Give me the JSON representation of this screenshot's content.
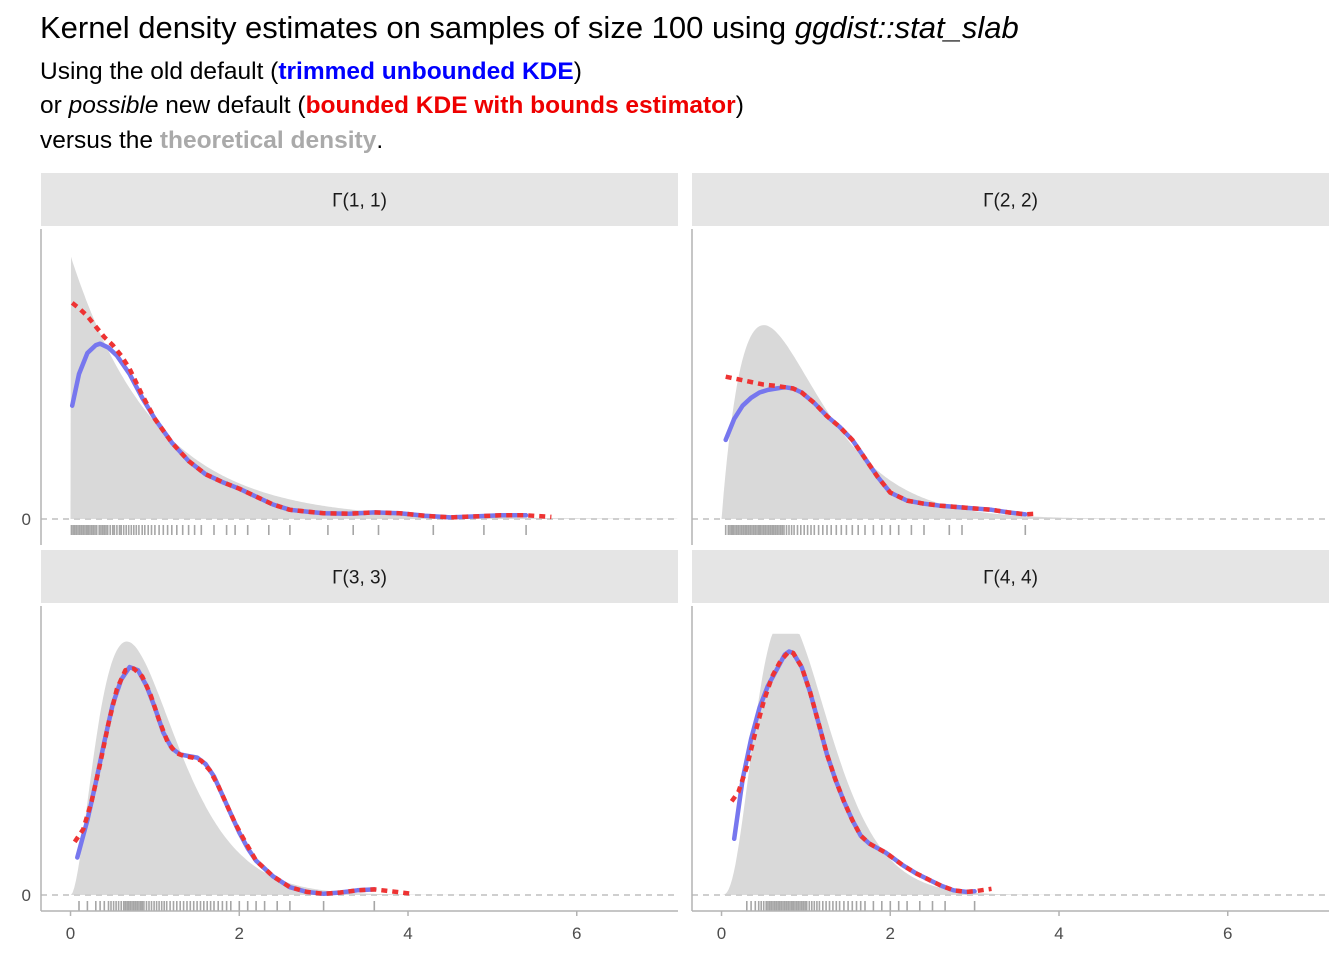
{
  "header": {
    "title_pre": "Kernel density estimates on samples of size 100 using ",
    "title_code": "ggdist::stat_slab",
    "sub1_pre": "Using the old default (",
    "sub1_blue": "trimmed unbounded KDE",
    "sub1_post": ")",
    "sub2_pre": "or ",
    "sub2_em": "possible",
    "sub2_mid": " new default (",
    "sub2_red": "bounded KDE with bounds estimator",
    "sub2_post": ")",
    "sub3_pre": "versus the ",
    "sub3_grey": "theoretical density",
    "sub3_post": "."
  },
  "colors": {
    "theory": "#d9d9d9",
    "unbounded": "#7777ee",
    "bounded": "#ee3333",
    "strip": "#e5e5e5",
    "axis": "#b3b3b3",
    "rug": "#000000"
  },
  "chart_data": {
    "type": "area",
    "xlim": [
      -0.35,
      7.2
    ],
    "x_ticks": [
      0,
      2,
      4,
      6
    ],
    "y_ticks": [
      0
    ],
    "panels": [
      {
        "label": "Γ(1, 1)",
        "shape": 1,
        "rate": 1,
        "ylim": [
          -0.06,
          1.07
        ],
        "unbounded": {
          "x": [
            0.02,
            0.1,
            0.2,
            0.3,
            0.35,
            0.45,
            0.55,
            0.7,
            0.85,
            1.0,
            1.2,
            1.4,
            1.6,
            1.8,
            2.0,
            2.2,
            2.4,
            2.6,
            2.8,
            3.0,
            3.3,
            3.6,
            3.9,
            4.2,
            4.5,
            4.8,
            5.1,
            5.4
          ],
          "y": [
            0.43,
            0.55,
            0.63,
            0.66,
            0.665,
            0.65,
            0.62,
            0.55,
            0.46,
            0.38,
            0.29,
            0.22,
            0.17,
            0.14,
            0.115,
            0.085,
            0.055,
            0.035,
            0.028,
            0.022,
            0.02,
            0.025,
            0.022,
            0.012,
            0.006,
            0.01,
            0.014,
            0.014
          ]
        },
        "bounded": {
          "x": [
            0.02,
            0.1,
            0.2,
            0.3,
            0.4,
            0.5,
            0.6,
            0.7,
            0.85,
            1.0,
            1.2,
            1.4,
            1.6,
            1.8,
            2.0,
            2.2,
            2.4,
            2.6,
            2.8,
            3.0,
            3.3,
            3.6,
            3.9,
            4.2,
            4.5,
            4.8,
            5.1,
            5.4,
            5.7
          ],
          "y": [
            0.82,
            0.8,
            0.77,
            0.73,
            0.69,
            0.66,
            0.62,
            0.57,
            0.47,
            0.38,
            0.29,
            0.22,
            0.17,
            0.14,
            0.115,
            0.085,
            0.055,
            0.035,
            0.028,
            0.022,
            0.02,
            0.025,
            0.022,
            0.012,
            0.006,
            0.01,
            0.014,
            0.014,
            0.008
          ]
        },
        "rug": [
          0.01,
          0.03,
          0.05,
          0.07,
          0.09,
          0.11,
          0.13,
          0.15,
          0.17,
          0.19,
          0.21,
          0.23,
          0.25,
          0.27,
          0.29,
          0.31,
          0.34,
          0.36,
          0.38,
          0.4,
          0.42,
          0.44,
          0.47,
          0.5,
          0.52,
          0.55,
          0.58,
          0.6,
          0.63,
          0.66,
          0.69,
          0.72,
          0.75,
          0.78,
          0.81,
          0.85,
          0.88,
          0.92,
          0.96,
          1.0,
          1.05,
          1.1,
          1.15,
          1.2,
          1.26,
          1.33,
          1.4,
          1.47,
          1.55,
          1.7,
          1.85,
          1.95,
          2.1,
          2.35,
          2.6,
          3.05,
          3.35,
          3.65,
          4.3,
          4.9,
          5.4
        ]
      },
      {
        "label": "Γ(2, 2)",
        "shape": 2,
        "rate": 2,
        "ylim": [
          -0.06,
          1.07
        ],
        "unbounded": {
          "x": [
            0.05,
            0.15,
            0.25,
            0.35,
            0.45,
            0.55,
            0.65,
            0.75,
            0.85,
            0.95,
            1.1,
            1.25,
            1.4,
            1.55,
            1.7,
            1.85,
            2.0,
            2.2,
            2.4,
            2.6,
            2.8,
            3.0,
            3.2,
            3.4,
            3.6
          ],
          "y": [
            0.3,
            0.38,
            0.43,
            0.46,
            0.48,
            0.49,
            0.495,
            0.5,
            0.495,
            0.48,
            0.44,
            0.39,
            0.35,
            0.3,
            0.23,
            0.16,
            0.1,
            0.07,
            0.058,
            0.05,
            0.045,
            0.04,
            0.035,
            0.025,
            0.018
          ]
        },
        "bounded": {
          "x": [
            0.05,
            0.2,
            0.35,
            0.5,
            0.65,
            0.75,
            0.85,
            0.95,
            1.1,
            1.25,
            1.4,
            1.55,
            1.7,
            1.85,
            2.0,
            2.2,
            2.4,
            2.6,
            2.8,
            3.0,
            3.2,
            3.4,
            3.6,
            3.75
          ],
          "y": [
            0.54,
            0.53,
            0.52,
            0.51,
            0.505,
            0.5,
            0.495,
            0.48,
            0.44,
            0.39,
            0.35,
            0.3,
            0.23,
            0.16,
            0.1,
            0.07,
            0.058,
            0.05,
            0.045,
            0.04,
            0.035,
            0.025,
            0.018,
            0.02
          ]
        },
        "rug": [
          0.05,
          0.08,
          0.1,
          0.12,
          0.14,
          0.16,
          0.18,
          0.2,
          0.22,
          0.24,
          0.26,
          0.28,
          0.3,
          0.32,
          0.34,
          0.36,
          0.38,
          0.4,
          0.42,
          0.44,
          0.46,
          0.48,
          0.5,
          0.52,
          0.54,
          0.56,
          0.58,
          0.6,
          0.62,
          0.64,
          0.66,
          0.68,
          0.7,
          0.72,
          0.74,
          0.77,
          0.8,
          0.83,
          0.86,
          0.9,
          0.94,
          0.98,
          1.02,
          1.06,
          1.1,
          1.15,
          1.2,
          1.25,
          1.3,
          1.36,
          1.42,
          1.48,
          1.55,
          1.62,
          1.7,
          1.8,
          1.9,
          2.0,
          2.1,
          2.25,
          2.4,
          2.7,
          2.85,
          3.6
        ]
      },
      {
        "label": "Γ(3, 3)",
        "shape": 3,
        "rate": 3,
        "ylim": [
          -0.05,
          0.9
        ],
        "unbounded": {
          "x": [
            0.08,
            0.2,
            0.3,
            0.4,
            0.5,
            0.6,
            0.7,
            0.8,
            0.9,
            1.0,
            1.1,
            1.2,
            1.3,
            1.4,
            1.5,
            1.6,
            1.7,
            1.8,
            1.9,
            2.0,
            2.1,
            2.2,
            2.4,
            2.6,
            2.8,
            3.0,
            3.2,
            3.4,
            3.6
          ],
          "y": [
            0.12,
            0.24,
            0.36,
            0.49,
            0.61,
            0.69,
            0.73,
            0.72,
            0.67,
            0.6,
            0.52,
            0.47,
            0.45,
            0.445,
            0.44,
            0.42,
            0.38,
            0.32,
            0.26,
            0.2,
            0.15,
            0.11,
            0.06,
            0.025,
            0.01,
            0.004,
            0.008,
            0.015,
            0.018
          ]
        },
        "bounded": {
          "x": [
            0.05,
            0.15,
            0.25,
            0.35,
            0.45,
            0.55,
            0.65,
            0.75,
            0.85,
            0.95,
            1.05,
            1.15,
            1.25,
            1.35,
            1.45,
            1.55,
            1.65,
            1.75,
            1.85,
            1.95,
            2.05,
            2.2,
            2.4,
            2.6,
            2.8,
            3.0,
            3.2,
            3.4,
            3.6,
            3.8,
            4.05
          ],
          "y": [
            0.17,
            0.21,
            0.3,
            0.42,
            0.55,
            0.66,
            0.72,
            0.725,
            0.7,
            0.64,
            0.56,
            0.49,
            0.455,
            0.445,
            0.44,
            0.43,
            0.4,
            0.35,
            0.29,
            0.23,
            0.18,
            0.11,
            0.06,
            0.025,
            0.01,
            0.004,
            0.008,
            0.015,
            0.018,
            0.012,
            0.004
          ]
        },
        "rug": [
          0.1,
          0.2,
          0.3,
          0.35,
          0.4,
          0.45,
          0.48,
          0.51,
          0.54,
          0.57,
          0.6,
          0.63,
          0.65,
          0.67,
          0.69,
          0.71,
          0.73,
          0.75,
          0.77,
          0.79,
          0.81,
          0.83,
          0.85,
          0.87,
          0.9,
          0.93,
          0.96,
          0.99,
          1.02,
          1.05,
          1.08,
          1.11,
          1.14,
          1.18,
          1.22,
          1.26,
          1.3,
          1.34,
          1.38,
          1.42,
          1.46,
          1.5,
          1.54,
          1.58,
          1.62,
          1.66,
          1.7,
          1.75,
          1.8,
          1.85,
          1.9,
          2.0,
          2.1,
          2.2,
          2.3,
          2.45,
          2.6,
          3.0,
          3.6
        ]
      },
      {
        "label": "Γ(4, 4)",
        "shape": 4,
        "rate": 4,
        "ylim": [
          -0.05,
          0.9
        ],
        "unbounded": {
          "x": [
            0.15,
            0.25,
            0.35,
            0.45,
            0.55,
            0.65,
            0.75,
            0.8,
            0.85,
            0.95,
            1.05,
            1.15,
            1.25,
            1.35,
            1.45,
            1.55,
            1.65,
            1.75,
            1.85,
            1.95,
            2.05,
            2.15,
            2.3,
            2.45,
            2.6,
            2.75,
            2.9,
            3.0
          ],
          "y": [
            0.18,
            0.37,
            0.5,
            0.6,
            0.67,
            0.72,
            0.77,
            0.78,
            0.775,
            0.73,
            0.65,
            0.55,
            0.45,
            0.37,
            0.3,
            0.24,
            0.19,
            0.165,
            0.15,
            0.135,
            0.115,
            0.095,
            0.07,
            0.05,
            0.03,
            0.015,
            0.01,
            0.012
          ]
        },
        "bounded": {
          "x": [
            0.12,
            0.2,
            0.3,
            0.4,
            0.5,
            0.6,
            0.7,
            0.8,
            0.85,
            0.95,
            1.05,
            1.15,
            1.25,
            1.35,
            1.45,
            1.55,
            1.65,
            1.75,
            1.85,
            1.95,
            2.05,
            2.15,
            2.3,
            2.45,
            2.6,
            2.75,
            2.9,
            3.0,
            3.2
          ],
          "y": [
            0.3,
            0.33,
            0.41,
            0.52,
            0.62,
            0.7,
            0.75,
            0.78,
            0.775,
            0.73,
            0.65,
            0.55,
            0.45,
            0.37,
            0.3,
            0.24,
            0.19,
            0.165,
            0.15,
            0.135,
            0.115,
            0.095,
            0.07,
            0.05,
            0.03,
            0.015,
            0.01,
            0.012,
            0.02
          ]
        },
        "rug": [
          0.3,
          0.35,
          0.4,
          0.44,
          0.47,
          0.5,
          0.53,
          0.55,
          0.57,
          0.59,
          0.61,
          0.63,
          0.65,
          0.67,
          0.69,
          0.71,
          0.73,
          0.75,
          0.77,
          0.79,
          0.81,
          0.83,
          0.85,
          0.87,
          0.89,
          0.91,
          0.93,
          0.95,
          0.97,
          0.99,
          1.01,
          1.04,
          1.07,
          1.1,
          1.13,
          1.16,
          1.2,
          1.24,
          1.28,
          1.32,
          1.36,
          1.4,
          1.45,
          1.5,
          1.55,
          1.6,
          1.65,
          1.7,
          1.8,
          1.9,
          2.0,
          2.1,
          2.2,
          2.35,
          2.5,
          2.65,
          3.0
        ]
      }
    ]
  }
}
